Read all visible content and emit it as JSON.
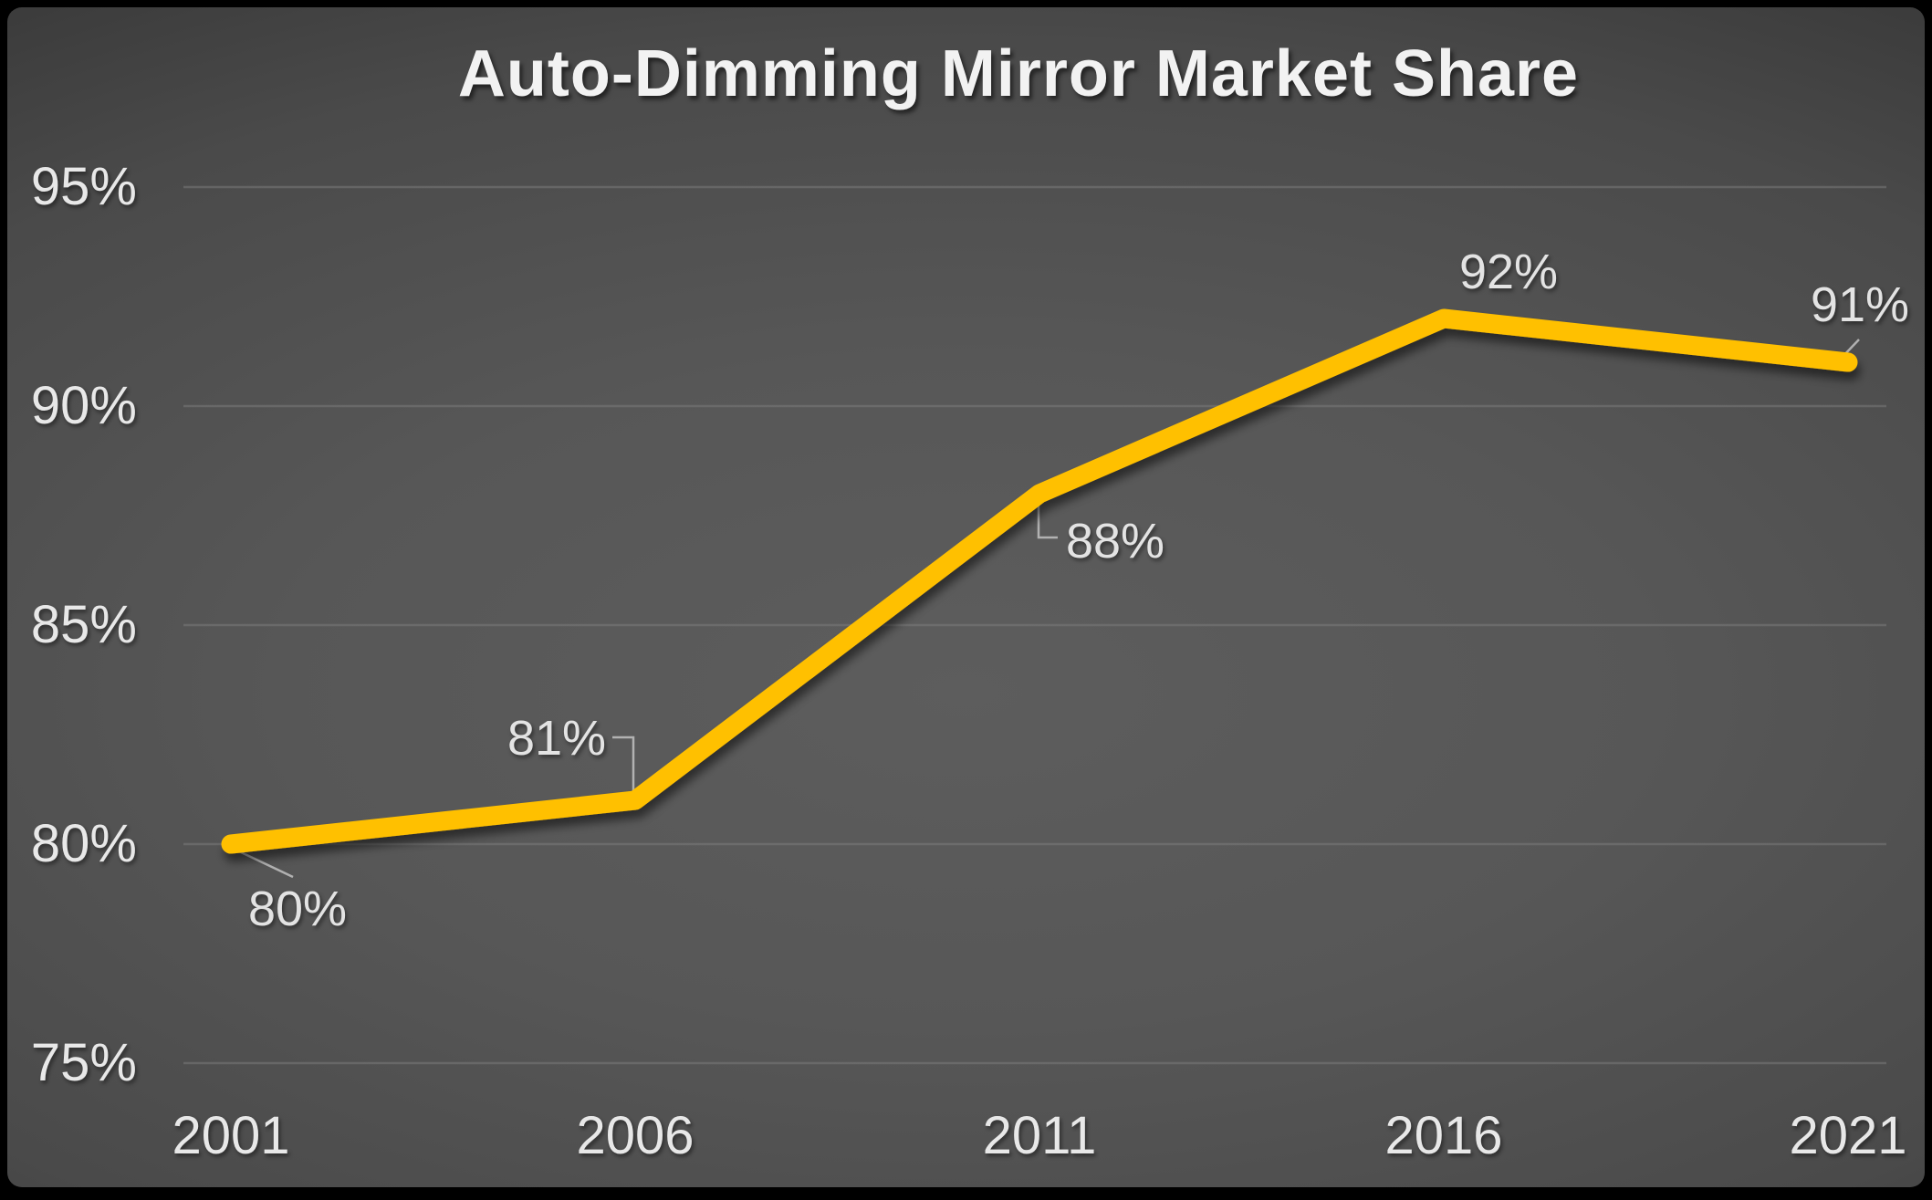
{
  "chart_data": {
    "type": "line",
    "title": "Auto-Dimming Mirror Market Share",
    "categories": [
      "2001",
      "2006",
      "2011",
      "2016",
      "2021"
    ],
    "series": [
      {
        "name": "Auto-Dimming Mirror Market Share",
        "values": [
          80,
          81,
          88,
          92,
          91
        ]
      }
    ],
    "data_labels": [
      "80%",
      "81%",
      "88%",
      "92%",
      "91%"
    ],
    "y_ticks": [
      {
        "value": 95,
        "label": "95%"
      },
      {
        "value": 90,
        "label": "90%"
      },
      {
        "value": 85,
        "label": "85%"
      },
      {
        "value": 80,
        "label": "80%"
      },
      {
        "value": 75,
        "label": "75%"
      }
    ],
    "ylim": [
      75,
      95
    ],
    "xlabel": "",
    "ylabel": "",
    "grid": "horizontal",
    "legend": "none",
    "colors": {
      "line": "#FFC000",
      "gridline": "#7d7d7d",
      "leader_line": "#c2c2c2",
      "axis_text": "#e8e8e8",
      "title_text": "#f2f2f2",
      "background_center": "#5c5c5c",
      "background_edge": "#242424",
      "frame": "#000000"
    }
  }
}
